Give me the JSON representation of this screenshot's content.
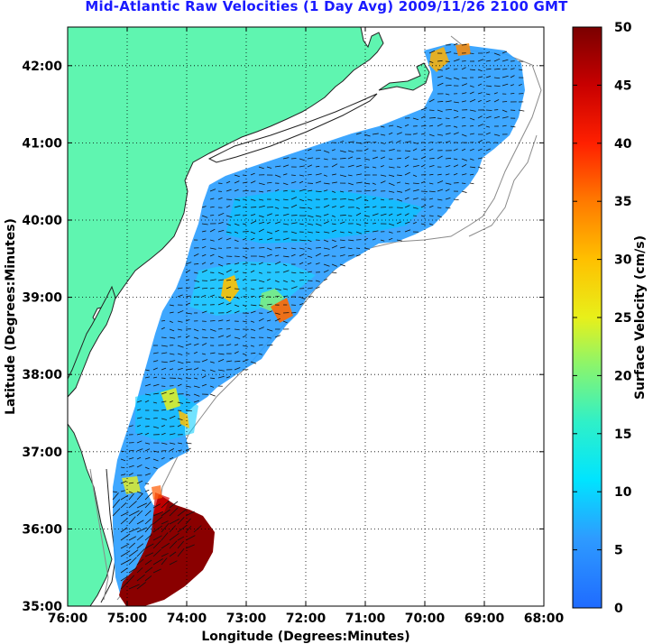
{
  "title": "Mid-Atlantic Raw Velocities (1 Day Avg) 2009/11/26 2100 GMT",
  "map": {
    "xlabel": "Longitude (Degrees:Minutes)",
    "ylabel": "Latitude (Degrees:Minutes)",
    "lon_range": [
      -76,
      -68
    ],
    "lat_range": [
      35,
      42.5
    ],
    "x_ticks": [
      "76:00",
      "75:00",
      "74:00",
      "73:00",
      "72:00",
      "71:00",
      "70:00",
      "69:00",
      "68:00"
    ],
    "y_ticks": [
      "35:00",
      "36:00",
      "37:00",
      "38:00",
      "39:00",
      "40:00",
      "41:00",
      "42:00"
    ],
    "grid": "dotted",
    "land_color": "#5ff5b0",
    "water_background": "#ffffff"
  },
  "colorbar": {
    "label": "Surface Velocity (cm/s)",
    "min": 0,
    "max": 50,
    "ticks": [
      "0",
      "5",
      "10",
      "15",
      "20",
      "25",
      "30",
      "35",
      "40",
      "45",
      "50"
    ],
    "colormap": "jet"
  }
}
